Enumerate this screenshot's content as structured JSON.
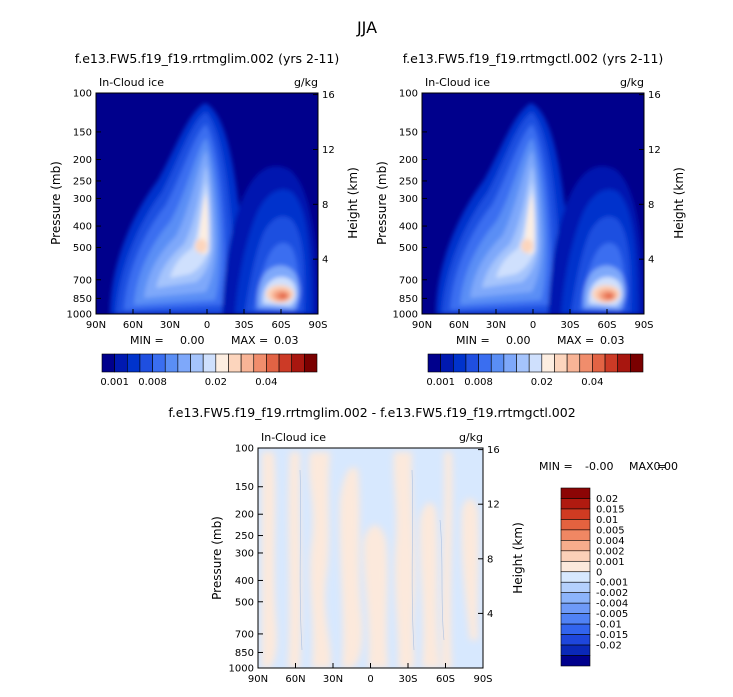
{
  "main_title": "JJA",
  "chart_data": [
    {
      "type": "heatmap",
      "title": "f.e13.FW5.f19_f19.rrtmglim.002 (yrs 2-11)",
      "left_label": "In-Cloud ice",
      "units": "g/kg",
      "xlabel": "",
      "ylabel": "Pressure (mb)",
      "y2label": "Height (km)",
      "x_ticks": [
        "90N",
        "60N",
        "30N",
        "0",
        "30S",
        "60S",
        "90S"
      ],
      "y_ticks": [
        "100",
        "150",
        "200",
        "250",
        "300",
        "400",
        "500",
        "700",
        "850",
        "1000"
      ],
      "y2_ticks": [
        "16",
        "12",
        "8",
        "4"
      ],
      "stats": {
        "min_label": "MIN =",
        "min": "0.00",
        "max_label": "MAX =",
        "max": "0.03"
      },
      "colorbar": {
        "colors": [
          "#00008c",
          "#0019b0",
          "#0033cc",
          "#1f4fe0",
          "#3a6ef0",
          "#5a8ef5",
          "#7ea8fa",
          "#a5c4fc",
          "#cfe0fd",
          "#fdeee1",
          "#fcd5bd",
          "#f8b496",
          "#f08d6c",
          "#e26344",
          "#cc3a26",
          "#a8160f",
          "#7a0000"
        ],
        "labels": [
          "0.001",
          "0.008",
          "0.02",
          "0.04"
        ]
      }
    },
    {
      "type": "heatmap",
      "title": "f.e13.FW5.f19_f19.rrtmgctl.002 (yrs 2-11)",
      "left_label": "In-Cloud ice",
      "units": "g/kg",
      "xlabel": "",
      "ylabel": "Pressure (mb)",
      "y2label": "Height (km)",
      "x_ticks": [
        "90N",
        "60N",
        "30N",
        "0",
        "30S",
        "60S",
        "90S"
      ],
      "y_ticks": [
        "100",
        "150",
        "200",
        "250",
        "300",
        "400",
        "500",
        "700",
        "850",
        "1000"
      ],
      "y2_ticks": [
        "16",
        "12",
        "8",
        "4"
      ],
      "stats": {
        "min_label": "MIN =",
        "min": "0.00",
        "max_label": "MAX =",
        "max": "0.03"
      },
      "colorbar": {
        "colors": [
          "#00008c",
          "#0019b0",
          "#0033cc",
          "#1f4fe0",
          "#3a6ef0",
          "#5a8ef5",
          "#7ea8fa",
          "#a5c4fc",
          "#cfe0fd",
          "#fdeee1",
          "#fcd5bd",
          "#f8b496",
          "#f08d6c",
          "#e26344",
          "#cc3a26",
          "#a8160f",
          "#7a0000"
        ],
        "labels": [
          "0.001",
          "0.008",
          "0.02",
          "0.04"
        ]
      }
    },
    {
      "type": "heatmap",
      "title": "f.e13.FW5.f19_f19.rrtmglim.002 - f.e13.FW5.f19_f19.rrtmgctl.002",
      "left_label": "In-Cloud ice",
      "units": "g/kg",
      "xlabel": "",
      "ylabel": "Pressure (mb)",
      "y2label": "Height (km)",
      "x_ticks": [
        "90N",
        "60N",
        "30N",
        "0",
        "30S",
        "60S",
        "90S"
      ],
      "y_ticks": [
        "100",
        "150",
        "200",
        "250",
        "300",
        "400",
        "500",
        "700",
        "850",
        "1000"
      ],
      "y2_ticks": [
        "16",
        "12",
        "8",
        "4"
      ],
      "stats": {
        "min_label": "MIN =",
        "min": "-0.00",
        "max_label": "MAX =",
        "max": "0.00"
      },
      "colorbar": {
        "colors": [
          "#00008c",
          "#0a28b8",
          "#1e46dc",
          "#3264ee",
          "#5082f5",
          "#6e9af8",
          "#8cb4fb",
          "#b4d0fd",
          "#d7e8fe",
          "#fce9dc",
          "#fbd0b8",
          "#f7ad8c",
          "#f08763",
          "#e4623f",
          "#d03b22",
          "#b01a10",
          "#8c0505"
        ],
        "labels": [
          "0.02",
          "0.015",
          "0.01",
          "0.005",
          "0.004",
          "0.002",
          "0.001",
          "0",
          "-0.001",
          "-0.002",
          "-0.004",
          "-0.005",
          "-0.01",
          "-0.015",
          "-0.02"
        ]
      }
    }
  ]
}
